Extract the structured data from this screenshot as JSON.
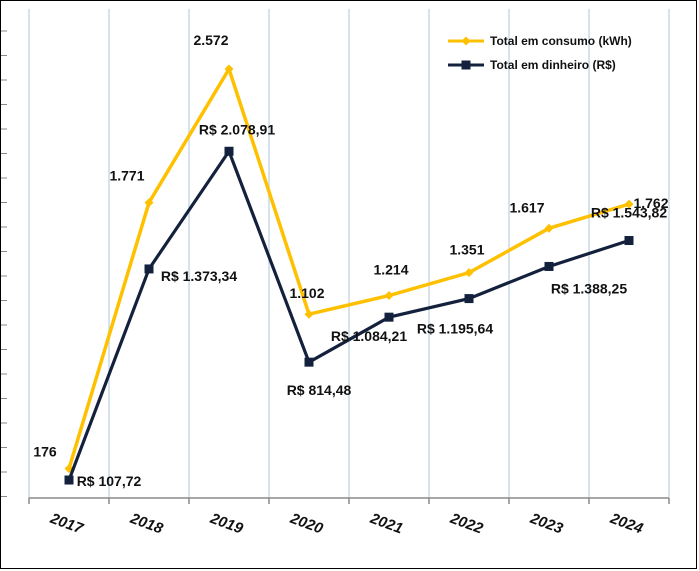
{
  "chart_data": {
    "type": "line",
    "categories": [
      "2017",
      "2018",
      "2019",
      "2020",
      "2021",
      "2022",
      "2023",
      "2024"
    ],
    "series": [
      {
        "name": "Total em consumo (kWh)",
        "color": "#FFC000",
        "values": [
          176,
          1771,
          2572,
          1102,
          1214,
          1351,
          1617,
          1762
        ],
        "labels": [
          "176",
          "1.771",
          "2.572",
          "1.102",
          "1.214",
          "1.351",
          "1.617",
          "1.762"
        ]
      },
      {
        "name": "Total em dinheiro (R$)",
        "color": "#14213D",
        "values": [
          107.72,
          1373.34,
          2078.91,
          814.48,
          1084.21,
          1195.64,
          1388.25,
          1543.82
        ],
        "labels": [
          "R$ 107,72",
          "R$ 1.373,34",
          "R$ 2.078,91",
          "R$ 814,48",
          "R$ 1.084,21",
          "R$ 1.195,64",
          "R$ 1.388,25",
          "R$ 1.543,82"
        ]
      }
    ],
    "ylim": [
      0,
      2800
    ],
    "grid": true,
    "legend": "top-right",
    "title": "",
    "xlabel": "",
    "ylabel": ""
  }
}
